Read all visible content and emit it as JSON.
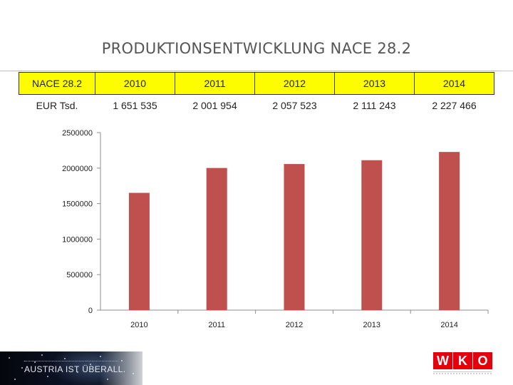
{
  "page": {
    "title": "PRODUKTIONSENTWICKLUNG NACE 28.2",
    "footer_slogan": "AUSTRIA IST ÜBERALL.",
    "logo_text": "WKO"
  },
  "table": {
    "header": [
      "NACE 28.2",
      "2010",
      "2011",
      "2012",
      "2013",
      "2014"
    ],
    "row": [
      "EUR Tsd.",
      "1 651 535",
      "2 001 954",
      "2 057 523",
      "2 111 243",
      "2 227 466"
    ],
    "header_bg": "#fdfd00"
  },
  "chart_data": {
    "type": "bar",
    "categories": [
      "2010",
      "2011",
      "2012",
      "2013",
      "2014"
    ],
    "values": [
      1651535,
      2001954,
      2057523,
      2111243,
      2227466
    ],
    "ylim": [
      0,
      2500000
    ],
    "yticks": [
      0,
      500000,
      1000000,
      1500000,
      2000000,
      2500000
    ],
    "ytick_labels": [
      "0",
      "500000",
      "1000000",
      "1500000",
      "2000000",
      "2500000"
    ],
    "grid": false,
    "legend": "none",
    "bar_color": "#c0504d"
  }
}
